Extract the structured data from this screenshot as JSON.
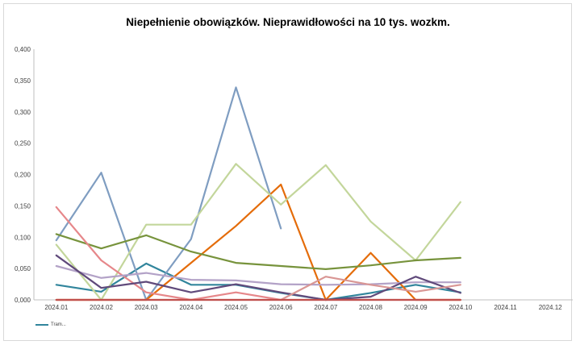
{
  "chart_data": {
    "type": "line",
    "title": "Niepełnienie obowiązków. Nieprawidłowości na 10 tys. wozkm.",
    "categories": [
      "2024.01",
      "2024.02",
      "2024.03",
      "2024.04",
      "2024.05",
      "2024.06",
      "2024.07",
      "2024.08",
      "2024.09",
      "2024.10",
      "2024.11",
      "2024.12"
    ],
    "ylim": [
      0,
      0.4
    ],
    "yticks": [
      "0,000",
      "0,050",
      "0,100",
      "0,150",
      "0,200",
      "0,250",
      "0,300",
      "0,350",
      "0,400"
    ],
    "grid": false,
    "legend_position": "bottom-left",
    "series": [
      {
        "name": "Tram...",
        "color": "#31859C",
        "values": [
          0.024,
          0.013,
          0.058,
          0.024,
          0.024,
          0.011,
          0.0,
          0.011,
          0.024,
          0.012,
          null,
          null
        ]
      },
      {
        "color": "#7F9DC1",
        "values": [
          0.095,
          0.203,
          0.0,
          0.097,
          0.339,
          0.114,
          null,
          null,
          null,
          null,
          null,
          null
        ]
      },
      {
        "color": "#E46C0A",
        "values": [
          0.0,
          0.0,
          0.0,
          0.059,
          0.118,
          0.184,
          0.0,
          0.075,
          0.0,
          0.0,
          null,
          null
        ]
      },
      {
        "color": "#C3D69B",
        "values": [
          0.088,
          0.0,
          0.12,
          0.12,
          0.217,
          0.152,
          0.215,
          0.125,
          0.063,
          0.156,
          null,
          null
        ]
      },
      {
        "color": "#77933C",
        "values": [
          0.105,
          0.082,
          0.103,
          0.077,
          0.059,
          0.054,
          0.049,
          0.055,
          0.063,
          0.067,
          null,
          null
        ]
      },
      {
        "color": "#E6878A",
        "values": [
          0.148,
          0.063,
          0.012,
          0.0,
          0.012,
          0.0,
          0.0,
          0.0,
          0.0,
          0.0,
          null,
          null
        ]
      },
      {
        "color": "#B3A2C7",
        "values": [
          0.054,
          0.035,
          0.043,
          0.032,
          0.031,
          0.025,
          0.024,
          0.025,
          0.028,
          0.028,
          null,
          null
        ]
      },
      {
        "color": "#604A7B",
        "values": [
          0.071,
          0.019,
          0.029,
          0.012,
          0.025,
          0.012,
          0.0,
          0.005,
          0.037,
          0.011,
          null,
          null
        ]
      },
      {
        "color": "#D99694",
        "values": [
          0.0,
          0.0,
          0.0,
          0.0,
          0.0,
          0.0,
          0.037,
          0.024,
          0.013,
          0.024,
          null,
          null
        ]
      },
      {
        "color": "#C0504D",
        "values": [
          0.0,
          0.0,
          0.0,
          0.0,
          0.0,
          0.0,
          0.0,
          0.0,
          0.0,
          0.0,
          null,
          null
        ]
      }
    ]
  }
}
